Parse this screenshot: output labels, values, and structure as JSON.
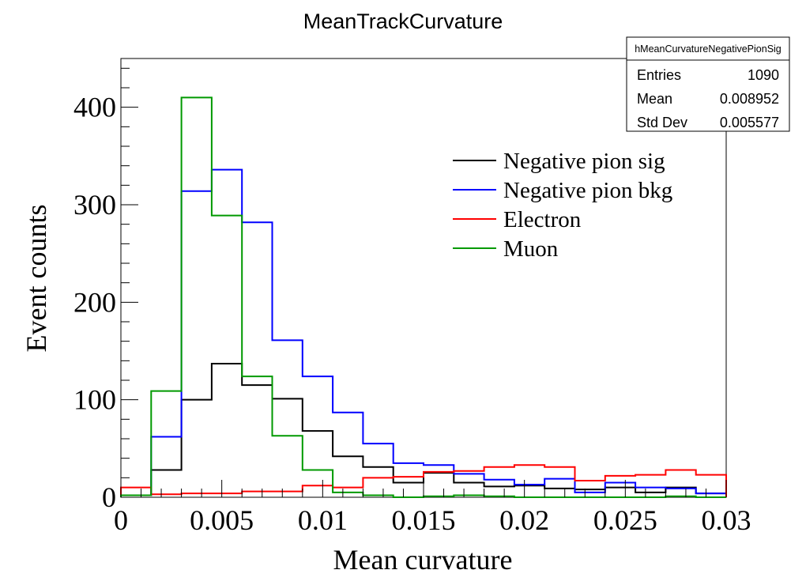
{
  "chart_data": {
    "type": "histogram-step",
    "title": "MeanTrackCurvature",
    "xlabel": "Mean curvature",
    "ylabel": "Event counts",
    "xlim": [
      0,
      0.03
    ],
    "ylim": [
      0,
      450
    ],
    "x_ticks": [
      0,
      0.005,
      0.01,
      0.015,
      0.02,
      0.025,
      0.03
    ],
    "x_tick_labels": [
      "0",
      "0.005",
      "0.01",
      "0.015",
      "0.02",
      "0.025",
      "0.03"
    ],
    "y_ticks": [
      0,
      100,
      200,
      300,
      400
    ],
    "y_tick_labels": [
      "0",
      "100",
      "200",
      "300",
      "400"
    ],
    "bin_edges": [
      0,
      0.0015,
      0.003,
      0.0045,
      0.006,
      0.0075,
      0.009,
      0.0105,
      0.012,
      0.0135,
      0.015,
      0.0165,
      0.018,
      0.0195,
      0.021,
      0.0225,
      0.024,
      0.0255,
      0.027,
      0.0285,
      0.03
    ],
    "series": [
      {
        "name": "Negative pion sig",
        "color": "#000000",
        "values": [
          2,
          28,
          100,
          137,
          115,
          101,
          68,
          42,
          31,
          15,
          25,
          15,
          11,
          12,
          9,
          8,
          10,
          5,
          10,
          4
        ]
      },
      {
        "name": "Negative pion bkg",
        "color": "#0000ff",
        "values": [
          2,
          62,
          314,
          336,
          282,
          161,
          124,
          87,
          55,
          35,
          33,
          24,
          18,
          13,
          19,
          5,
          15,
          10,
          9,
          4
        ]
      },
      {
        "name": "Electron",
        "color": "#ff0000",
        "values": [
          10,
          3,
          4,
          4,
          6,
          6,
          12,
          10,
          20,
          21,
          26,
          27,
          31,
          33,
          31,
          17,
          22,
          23,
          28,
          23
        ]
      },
      {
        "name": "Muon",
        "color": "#009900",
        "values": [
          2,
          109,
          410,
          289,
          124,
          63,
          28,
          5,
          2,
          0,
          1,
          2,
          1,
          0,
          0,
          0,
          0,
          0,
          1,
          0
        ]
      }
    ],
    "legend_position": "top-right",
    "stats_box": {
      "name": "hMeanCurvatureNegativePionSig",
      "rows": [
        {
          "label": "Entries",
          "value": "1090"
        },
        {
          "label": "Mean",
          "value": "0.008952"
        },
        {
          "label": "Std Dev",
          "value": "0.005577"
        }
      ]
    },
    "grid": false
  }
}
